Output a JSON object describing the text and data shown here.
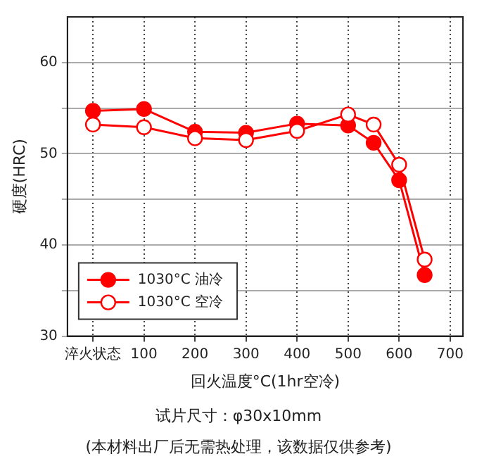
{
  "chart_data": {
    "type": "line",
    "xlabel": "回火温度°C(1hr空冷)",
    "ylabel": "硬度(HRC)",
    "x": [
      0,
      100,
      200,
      300,
      400,
      500,
      550,
      600,
      650
    ],
    "series": [
      {
        "name": "1030°C 油冷",
        "color": "#ff0000",
        "marker": "circle",
        "values": [
          54.7,
          54.9,
          52.4,
          52.3,
          53.3,
          53.1,
          51.2,
          47.1,
          36.7
        ]
      },
      {
        "name": "1030°C 空冷",
        "color": "#ff0000",
        "marker": "open_circle",
        "values": [
          53.2,
          52.9,
          51.7,
          51.5,
          52.5,
          54.3,
          53.2,
          48.8,
          38.4
        ]
      }
    ],
    "xlim": [
      -50,
      725
    ],
    "xticks": [
      {
        "value": 0,
        "label": "淬火状态"
      },
      100,
      200,
      300,
      400,
      500,
      600,
      700
    ],
    "ylim": [
      30,
      65
    ],
    "yticks": [
      30,
      {
        "value": 35,
        "label": null
      },
      40,
      {
        "value": 45,
        "label": null
      },
      50,
      {
        "value": 55,
        "label": null
      },
      60
    ],
    "grid": true,
    "legend": "bottom left",
    "annotations": [
      "试片尺寸：φ30x10mm",
      "(本材料出厂后无需热处理，该数据仅供参考)"
    ]
  }
}
